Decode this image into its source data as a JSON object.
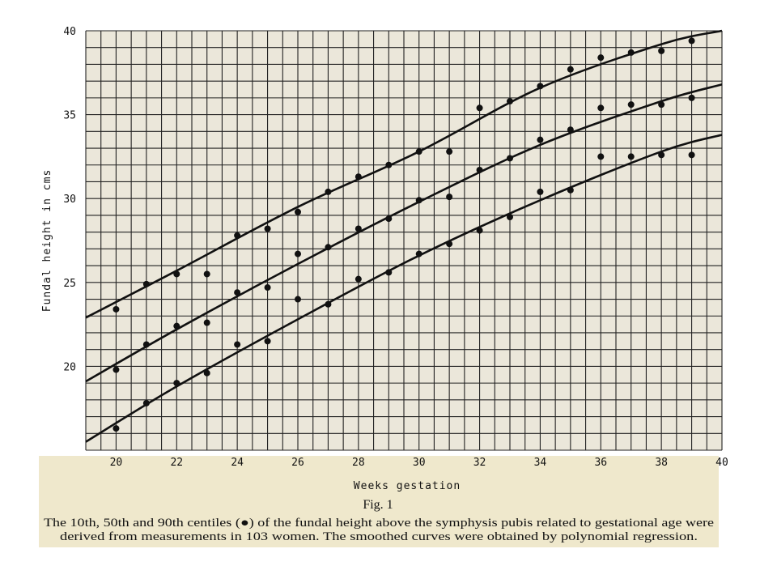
{
  "chart_data": {
    "type": "scatter",
    "xlabel": "Weeks   gestation",
    "ylabel": "Fundal height in cms",
    "xlim": [
      19,
      40
    ],
    "ylim": [
      15,
      40
    ],
    "x_ticks": [
      20,
      22,
      24,
      26,
      28,
      30,
      32,
      34,
      36,
      38,
      40
    ],
    "y_ticks": [
      20,
      25,
      30,
      35,
      40
    ],
    "grid": true,
    "series": [
      {
        "points": [
          {
            "x": 20,
            "y": 23.4
          },
          {
            "x": 21,
            "y": 24.9
          },
          {
            "x": 22,
            "y": 25.5
          },
          {
            "x": 23,
            "y": 25.5
          },
          {
            "x": 24,
            "y": 27.8
          },
          {
            "x": 25,
            "y": 28.2
          },
          {
            "x": 26,
            "y": 29.2
          },
          {
            "x": 27,
            "y": 30.4
          },
          {
            "x": 28,
            "y": 31.3
          },
          {
            "x": 29,
            "y": 32.0
          },
          {
            "x": 30,
            "y": 32.8
          },
          {
            "x": 31,
            "y": 32.8
          },
          {
            "x": 32,
            "y": 35.4
          },
          {
            "x": 33,
            "y": 35.8
          },
          {
            "x": 34,
            "y": 36.7
          },
          {
            "x": 35,
            "y": 37.7
          },
          {
            "x": 36,
            "y": 38.4
          },
          {
            "x": 37,
            "y": 38.7
          },
          {
            "x": 38,
            "y": 38.8
          },
          {
            "x": 39,
            "y": 39.4
          }
        ],
        "curve": [
          {
            "x": 19,
            "y": 22.9
          },
          {
            "x": 22,
            "y": 25.7
          },
          {
            "x": 26,
            "y": 29.5
          },
          {
            "x": 30,
            "y": 32.8
          },
          {
            "x": 34,
            "y": 36.6
          },
          {
            "x": 38,
            "y": 39.2
          },
          {
            "x": 40,
            "y": 40.0
          }
        ]
      },
      {
        "points": [
          {
            "x": 20,
            "y": 19.8
          },
          {
            "x": 21,
            "y": 21.3
          },
          {
            "x": 22,
            "y": 22.4
          },
          {
            "x": 23,
            "y": 22.6
          },
          {
            "x": 24,
            "y": 24.4
          },
          {
            "x": 25,
            "y": 24.7
          },
          {
            "x": 26,
            "y": 26.7
          },
          {
            "x": 27,
            "y": 27.1
          },
          {
            "x": 28,
            "y": 28.2
          },
          {
            "x": 29,
            "y": 28.8
          },
          {
            "x": 30,
            "y": 29.9
          },
          {
            "x": 31,
            "y": 30.1
          },
          {
            "x": 32,
            "y": 31.7
          },
          {
            "x": 33,
            "y": 32.4
          },
          {
            "x": 34,
            "y": 33.5
          },
          {
            "x": 35,
            "y": 34.1
          },
          {
            "x": 36,
            "y": 35.4
          },
          {
            "x": 37,
            "y": 35.6
          },
          {
            "x": 38,
            "y": 35.6
          },
          {
            "x": 39,
            "y": 36.0
          }
        ],
        "curve": [
          {
            "x": 19,
            "y": 19.1
          },
          {
            "x": 22,
            "y": 22.2
          },
          {
            "x": 26,
            "y": 26.1
          },
          {
            "x": 30,
            "y": 29.8
          },
          {
            "x": 34,
            "y": 33.2
          },
          {
            "x": 38,
            "y": 35.8
          },
          {
            "x": 40,
            "y": 36.8
          }
        ]
      },
      {
        "points": [
          {
            "x": 20,
            "y": 16.3
          },
          {
            "x": 21,
            "y": 17.8
          },
          {
            "x": 22,
            "y": 19.0
          },
          {
            "x": 23,
            "y": 19.6
          },
          {
            "x": 24,
            "y": 21.3
          },
          {
            "x": 25,
            "y": 21.5
          },
          {
            "x": 26,
            "y": 24.0
          },
          {
            "x": 27,
            "y": 23.7
          },
          {
            "x": 28,
            "y": 25.2
          },
          {
            "x": 29,
            "y": 25.6
          },
          {
            "x": 30,
            "y": 26.7
          },
          {
            "x": 31,
            "y": 27.3
          },
          {
            "x": 32,
            "y": 28.1
          },
          {
            "x": 33,
            "y": 28.9
          },
          {
            "x": 34,
            "y": 30.4
          },
          {
            "x": 35,
            "y": 30.5
          },
          {
            "x": 36,
            "y": 32.5
          },
          {
            "x": 37,
            "y": 32.5
          },
          {
            "x": 38,
            "y": 32.6
          },
          {
            "x": 39,
            "y": 32.6
          }
        ],
        "curve": [
          {
            "x": 19,
            "y": 15.5
          },
          {
            "x": 22,
            "y": 18.8
          },
          {
            "x": 26,
            "y": 22.8
          },
          {
            "x": 30,
            "y": 26.6
          },
          {
            "x": 34,
            "y": 29.9
          },
          {
            "x": 38,
            "y": 32.8
          },
          {
            "x": 40,
            "y": 33.8
          }
        ]
      }
    ]
  },
  "figure": {
    "label": "Fig. 1",
    "caption_line1": "The 10th, 50th and 90th centiles (●) of the fundal height above the symphysis pubis related to gestational age were",
    "caption_line2": "derived from measurements in 103 women. The smoothed curves were obtained by polynomial regression."
  },
  "colors": {
    "paper": "#e8e3d4",
    "caption_bg": "#efe8cc",
    "ink": "#111111"
  }
}
